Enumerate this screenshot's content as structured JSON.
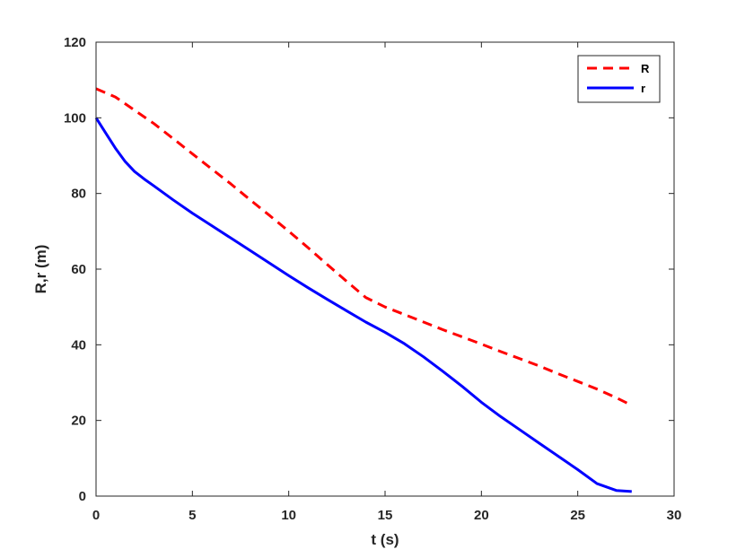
{
  "chart_data": {
    "type": "line",
    "xlabel": "t (s)",
    "ylabel": "R,r (m)",
    "xlim": [
      0,
      30
    ],
    "ylim": [
      0,
      120
    ],
    "xticks": [
      0,
      5,
      10,
      15,
      20,
      25,
      30
    ],
    "yticks": [
      0,
      20,
      40,
      60,
      80,
      100,
      120
    ],
    "grid": false,
    "legend_position": "top-right",
    "series": [
      {
        "name": "R",
        "color": "#ff0000",
        "style": "dashed",
        "x": [
          0,
          1,
          2,
          3,
          4,
          5,
          6,
          7,
          8,
          9,
          10,
          11,
          12,
          13,
          14,
          15,
          16,
          17,
          18,
          19,
          20,
          21,
          22,
          23,
          24,
          25,
          26,
          27,
          27.8
        ],
        "y": [
          107.7,
          105.5,
          102.0,
          98.5,
          94.5,
          90.5,
          86.5,
          82.5,
          78.3,
          74.2,
          70.0,
          65.7,
          61.2,
          56.8,
          52.5,
          50.0,
          48.0,
          46.0,
          44.0,
          42.1,
          40.2,
          38.2,
          36.3,
          34.4,
          32.3,
          30.3,
          28.3,
          26.0,
          24.0
        ]
      },
      {
        "name": "r",
        "color": "#0000ff",
        "style": "solid",
        "x": [
          0,
          0.5,
          1,
          1.5,
          2,
          2.5,
          3,
          4,
          5,
          6,
          7,
          8,
          9,
          10,
          11,
          12,
          13,
          14,
          15,
          16,
          17,
          18,
          19,
          20,
          21,
          22,
          23,
          24,
          25,
          26,
          27,
          27.8
        ],
        "y": [
          100,
          96.0,
          92.0,
          88.5,
          85.8,
          83.8,
          82.0,
          78.3,
          74.8,
          71.5,
          68.2,
          64.9,
          61.6,
          58.3,
          55.1,
          52.0,
          49.0,
          46.0,
          43.3,
          40.3,
          36.8,
          33.0,
          29.0,
          24.8,
          21.0,
          17.5,
          14.0,
          10.5,
          7.0,
          3.3,
          1.5,
          1.2
        ]
      }
    ]
  }
}
